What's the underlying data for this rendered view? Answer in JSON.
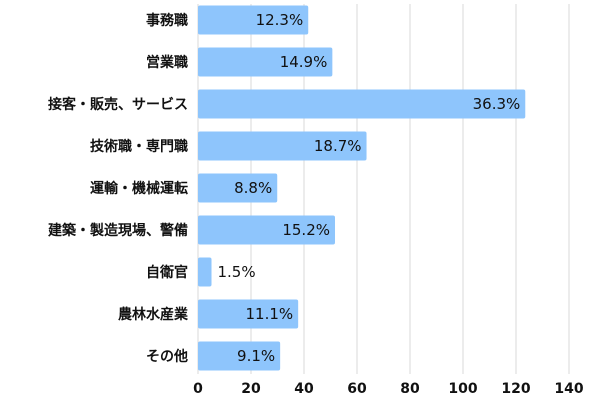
{
  "chart_data": {
    "type": "bar",
    "orientation": "horizontal",
    "categories": [
      "事務職",
      "営業職",
      "接客・販売、サービス",
      "技術職・専門職",
      "運輸・機械運転",
      "建築・製造現場、警備",
      "自衛官",
      "農林水産業",
      "その他"
    ],
    "values": [
      41.6,
      50.7,
      123.5,
      63.6,
      29.9,
      51.7,
      5.1,
      37.8,
      31.0
    ],
    "data_labels": [
      "12.3%",
      "14.9%",
      "36.3%",
      "18.7%",
      "8.8%",
      "15.2%",
      "1.5%",
      "11.1%",
      "9.1%"
    ],
    "xlim": [
      0,
      140
    ],
    "xticks": [
      0,
      20,
      40,
      60,
      80,
      100,
      120,
      140
    ],
    "grid": true,
    "bar_color": "#8ec5fc",
    "title": "",
    "xlabel": "",
    "ylabel": ""
  }
}
